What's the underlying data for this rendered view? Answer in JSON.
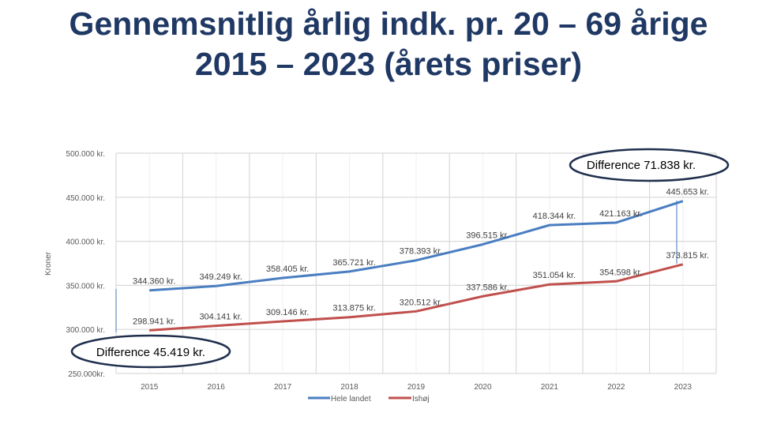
{
  "title_line1": "Gennemsnitlig årlig indk. pr. 20 – 69 årige",
  "title_line2": "2015 – 2023 (årets priser)",
  "chart_data": {
    "type": "line",
    "title": "Gennemsnitlig årlig indk. pr. 20 – 69 årige 2015 – 2023 (årets priser)",
    "xlabel": "",
    "ylabel": "Kroner",
    "categories": [
      "2015",
      "2016",
      "2017",
      "2018",
      "2019",
      "2020",
      "2021",
      "2022",
      "2023"
    ],
    "ylim": [
      250000,
      500000
    ],
    "yticks": [
      250000,
      300000,
      350000,
      400000,
      450000,
      500000
    ],
    "ytick_labels": [
      "250.000kr.",
      "300.000 kr.",
      "350.000 kr.",
      "400.000 kr.",
      "450.000 kr.",
      "500.000 kr."
    ],
    "grid": true,
    "legend_position": "bottom",
    "series": [
      {
        "name": "Hele landet",
        "color": "#4A7EC1",
        "values": [
          344360,
          349249,
          358405,
          365721,
          378393,
          396515,
          418344,
          421163,
          445653
        ],
        "labels": [
          "344.360 kr.",
          "349.249 kr.",
          "358.405 kr.",
          "365.721 kr.",
          "378.393 kr.",
          "396.515 kr.",
          "418.344 kr.",
          "421.163 kr.",
          "445.653 kr."
        ]
      },
      {
        "name": "Ishøj",
        "color": "#C0504D",
        "values": [
          298941,
          304141,
          309146,
          313875,
          320512,
          337586,
          351054,
          354598,
          373815
        ],
        "labels": [
          "298.941 kr.",
          "304.141 kr.",
          "309.146 kr.",
          "313.875 kr.",
          "320.512 kr.",
          "337.586 kr.",
          "351.054 kr.",
          "354.598 kr.",
          "373.815 kr."
        ]
      }
    ],
    "annotations": [
      {
        "text": "Difference 45.419 kr.",
        "year": "2015"
      },
      {
        "text": "Difference 71.838 kr.",
        "year": "2023"
      }
    ]
  }
}
